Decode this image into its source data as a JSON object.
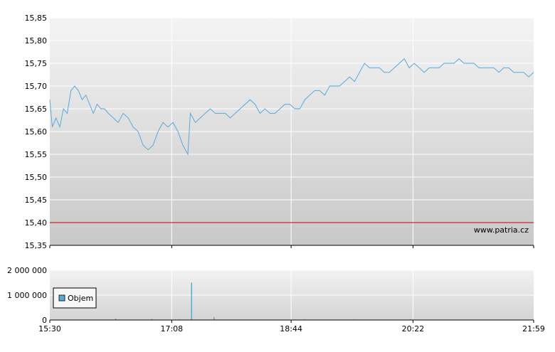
{
  "chart_data": [
    {
      "type": "line",
      "watermark": "www.patria.cz",
      "ylim": [
        15.35,
        15.85
      ],
      "y_ticks": [
        "15,85",
        "15,80",
        "15,75",
        "15,70",
        "15,65",
        "15,60",
        "15,55",
        "15,50",
        "15,45",
        "15,40",
        "15,35"
      ],
      "reference_line": {
        "value": 15.4,
        "color": "#cc0000"
      },
      "line_color": "#5aaad8",
      "grid": true,
      "x_domain": [
        "15:30",
        "21:59"
      ],
      "series": [
        {
          "values": [
            [
              "15:30",
              15.67
            ],
            [
              "15:32",
              15.61
            ],
            [
              "15:35",
              15.63
            ],
            [
              "15:38",
              15.61
            ],
            [
              "15:41",
              15.65
            ],
            [
              "15:44",
              15.64
            ],
            [
              "15:47",
              15.69
            ],
            [
              "15:50",
              15.7
            ],
            [
              "15:53",
              15.69
            ],
            [
              "15:56",
              15.67
            ],
            [
              "15:59",
              15.68
            ],
            [
              "16:02",
              15.66
            ],
            [
              "16:05",
              15.64
            ],
            [
              "16:08",
              15.66
            ],
            [
              "16:11",
              15.65
            ],
            [
              "16:14",
              15.65
            ],
            [
              "16:17",
              15.64
            ],
            [
              "16:21",
              15.63
            ],
            [
              "16:25",
              15.62
            ],
            [
              "16:29",
              15.64
            ],
            [
              "16:33",
              15.63
            ],
            [
              "16:37",
              15.61
            ],
            [
              "16:41",
              15.6
            ],
            [
              "16:45",
              15.57
            ],
            [
              "16:49",
              15.56
            ],
            [
              "16:53",
              15.57
            ],
            [
              "16:57",
              15.6
            ],
            [
              "17:01",
              15.62
            ],
            [
              "17:05",
              15.61
            ],
            [
              "17:09",
              15.62
            ],
            [
              "17:13",
              15.6
            ],
            [
              "17:17",
              15.57
            ],
            [
              "17:21",
              15.55
            ],
            [
              "17:23",
              15.64
            ],
            [
              "17:27",
              15.62
            ],
            [
              "17:31",
              15.63
            ],
            [
              "17:35",
              15.64
            ],
            [
              "17:39",
              15.65
            ],
            [
              "17:43",
              15.64
            ],
            [
              "17:47",
              15.64
            ],
            [
              "17:51",
              15.64
            ],
            [
              "17:55",
              15.63
            ],
            [
              "17:59",
              15.64
            ],
            [
              "18:03",
              15.65
            ],
            [
              "18:07",
              15.66
            ],
            [
              "18:11",
              15.67
            ],
            [
              "18:15",
              15.66
            ],
            [
              "18:19",
              15.64
            ],
            [
              "18:23",
              15.65
            ],
            [
              "18:27",
              15.64
            ],
            [
              "18:31",
              15.64
            ],
            [
              "18:35",
              15.65
            ],
            [
              "18:39",
              15.66
            ],
            [
              "18:43",
              15.66
            ],
            [
              "18:47",
              15.65
            ],
            [
              "18:51",
              15.65
            ],
            [
              "18:55",
              15.67
            ],
            [
              "18:59",
              15.68
            ],
            [
              "19:03",
              15.69
            ],
            [
              "19:07",
              15.69
            ],
            [
              "19:11",
              15.68
            ],
            [
              "19:15",
              15.7
            ],
            [
              "19:19",
              15.7
            ],
            [
              "19:23",
              15.7
            ],
            [
              "19:27",
              15.71
            ],
            [
              "19:31",
              15.72
            ],
            [
              "19:35",
              15.71
            ],
            [
              "19:39",
              15.73
            ],
            [
              "19:43",
              15.75
            ],
            [
              "19:47",
              15.74
            ],
            [
              "19:51",
              15.74
            ],
            [
              "19:55",
              15.74
            ],
            [
              "19:59",
              15.73
            ],
            [
              "20:03",
              15.73
            ],
            [
              "20:07",
              15.74
            ],
            [
              "20:11",
              15.75
            ],
            [
              "20:15",
              15.76
            ],
            [
              "20:19",
              15.74
            ],
            [
              "20:23",
              15.75
            ],
            [
              "20:27",
              15.74
            ],
            [
              "20:31",
              15.73
            ],
            [
              "20:35",
              15.74
            ],
            [
              "20:39",
              15.74
            ],
            [
              "20:43",
              15.74
            ],
            [
              "20:47",
              15.75
            ],
            [
              "20:51",
              15.75
            ],
            [
              "20:55",
              15.75
            ],
            [
              "20:59",
              15.76
            ],
            [
              "21:03",
              15.75
            ],
            [
              "21:07",
              15.75
            ],
            [
              "21:11",
              15.75
            ],
            [
              "21:15",
              15.74
            ],
            [
              "21:19",
              15.74
            ],
            [
              "21:23",
              15.74
            ],
            [
              "21:27",
              15.74
            ],
            [
              "21:31",
              15.73
            ],
            [
              "21:35",
              15.74
            ],
            [
              "21:39",
              15.74
            ],
            [
              "21:43",
              15.73
            ],
            [
              "21:47",
              15.73
            ],
            [
              "21:51",
              15.73
            ],
            [
              "21:55",
              15.72
            ],
            [
              "21:59",
              15.73
            ]
          ]
        }
      ]
    },
    {
      "type": "bar",
      "ylim": [
        0,
        2000000
      ],
      "y_ticks": [
        "2 000 000",
        "1 000 000",
        "0"
      ],
      "x_ticks": [
        "15:30",
        "17:08",
        "18:44",
        "20:22",
        "21:59"
      ],
      "bar_color": "#5aaad8",
      "grid": true,
      "legend": {
        "label": "Objem",
        "position": "left",
        "swatch_color": "#5aaad8"
      },
      "series": [
        {
          "name": "Objem",
          "values": [
            [
              "16:23",
              60000
            ],
            [
              "16:52",
              40000
            ],
            [
              "17:14",
              25000
            ],
            [
              "17:24",
              1500000
            ],
            [
              "17:42",
              120000
            ],
            [
              "18:02",
              20000
            ],
            [
              "18:55",
              30000
            ],
            [
              "19:35",
              25000
            ],
            [
              "20:20",
              30000
            ],
            [
              "21:00",
              20000
            ],
            [
              "21:45",
              20000
            ]
          ]
        }
      ]
    }
  ]
}
